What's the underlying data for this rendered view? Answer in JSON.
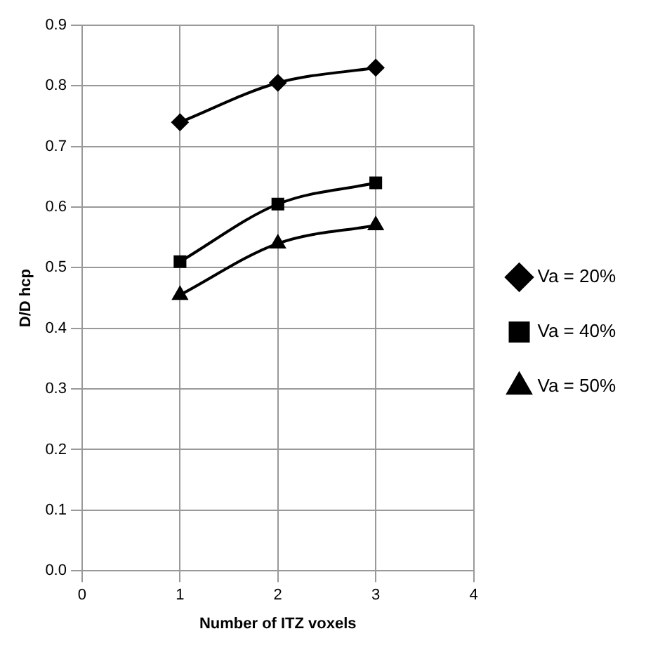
{
  "chart_data": {
    "type": "line",
    "xlabel": "Number of ITZ voxels",
    "ylabel": "D/D hcp",
    "x": [
      1,
      2,
      3
    ],
    "series": [
      {
        "name": "Va = 20%",
        "color": "#000000",
        "marker": "diamond",
        "values": [
          0.74,
          0.805,
          0.83
        ]
      },
      {
        "name": "Va = 40%",
        "color": "#000000",
        "marker": "square",
        "values": [
          0.51,
          0.605,
          0.64
        ]
      },
      {
        "name": "Va = 50%",
        "color": "#000000",
        "marker": "triangle",
        "values": [
          0.455,
          0.54,
          0.57
        ]
      }
    ],
    "xlim": [
      0,
      4
    ],
    "xticks": [
      0,
      1,
      2,
      3,
      4
    ],
    "ylim": [
      0,
      0.9
    ],
    "yticks": [
      {
        "value": 0,
        "label": "0.0"
      },
      0.1,
      0.2,
      0.3,
      0.4,
      0.5,
      0.6,
      0.7,
      0.8,
      0.9
    ],
    "grid": true,
    "legend": "right",
    "line_style": "solid"
  }
}
